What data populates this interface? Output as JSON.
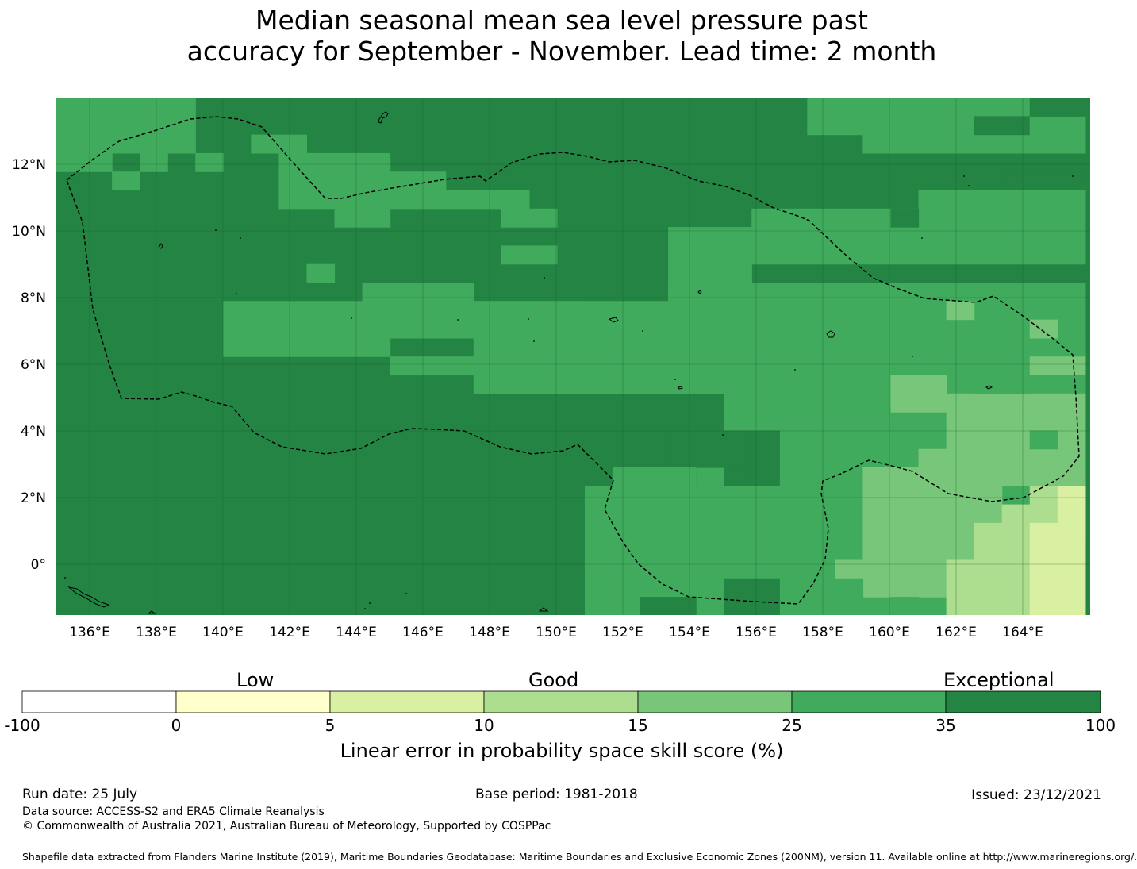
{
  "title_line1": "Median seasonal mean sea level pressure past",
  "title_line2": "accuracy for September - November. Lead time: 2 month",
  "map": {
    "lon_labels": [
      "136°E",
      "138°E",
      "140°E",
      "142°E",
      "144°E",
      "146°E",
      "148°E",
      "150°E",
      "152°E",
      "154°E",
      "156°E",
      "158°E",
      "160°E",
      "162°E",
      "164°E"
    ],
    "lat_labels": [
      "12°N",
      "10°N",
      "8°N",
      "6°N",
      "4°N",
      "2°N",
      "0°"
    ],
    "category_colors": {
      "cat35": "#238443",
      "cat25": "#41ab5d",
      "cat15": "#78c679",
      "cat10": "#addd8e",
      "cat5": "#d9f0a3",
      "cat0": "#ffffcc",
      "neg": "#ffffff"
    },
    "boundary_line": "dashed",
    "coastline_color": "#000000"
  },
  "colorbar": {
    "group_labels": {
      "low": "Low",
      "good": "Good",
      "exceptional": "Exceptional"
    },
    "ticks": [
      "-100",
      "0",
      "5",
      "10",
      "15",
      "25",
      "35",
      "100"
    ],
    "colors": [
      "#ffffff",
      "#ffffcc",
      "#d9f0a3",
      "#addd8e",
      "#78c679",
      "#41ab5d",
      "#238443"
    ],
    "caption": "Linear error in probability space skill score (%)"
  },
  "footer": {
    "run_date": "Run date: 25 July",
    "base_period": "Base period: 1981-2018",
    "issued": "Issued: 23/12/2021",
    "data_source": "Data source: ACCESS-S2 and ERA5 Climate Reanalysis",
    "copyright": "© Commonwealth of Australia 2021, Australian Bureau of Meteorology, Supported by COSPPac",
    "shapefile": "Shapefile data extracted from Flanders Marine Institute (2019), Maritime Boundaries Geodatabase: Maritime Boundaries and Exclusive Economic Zones (200NM), version 11. Available online at http://www.marineregions.org/."
  }
}
